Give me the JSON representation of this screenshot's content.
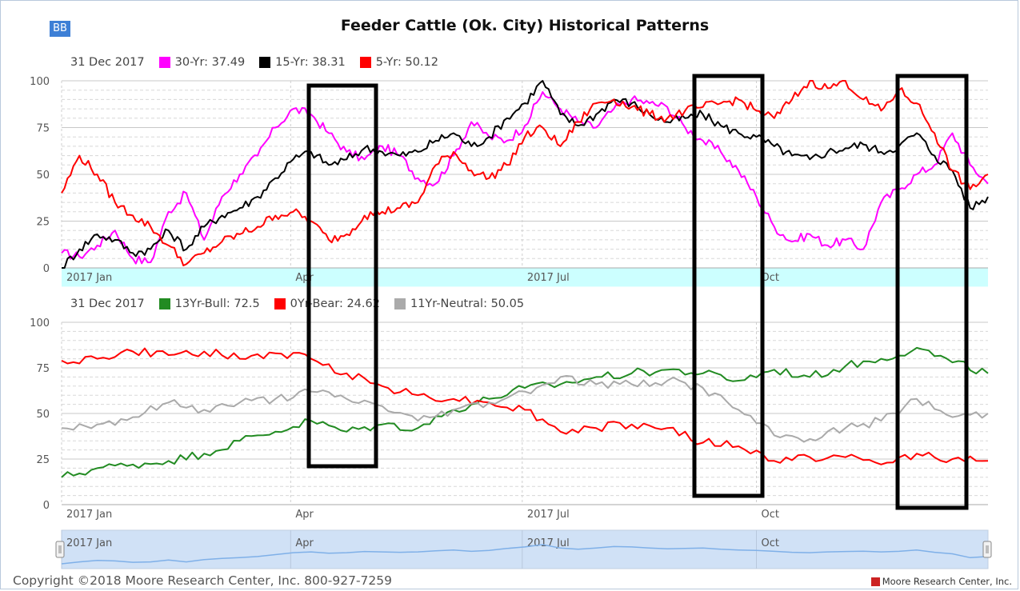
{
  "header": {
    "badge": "BB",
    "title": "Feeder Cattle (Ok. City) Historical Patterns"
  },
  "legend_top": {
    "date": "31 Dec 2017",
    "items": [
      {
        "label": "30-Yr: 37.49",
        "color": "#ff00ff"
      },
      {
        "label": "15-Yr: 38.31",
        "color": "#000000"
      },
      {
        "label": "5-Yr: 50.12",
        "color": "#ff0000"
      }
    ]
  },
  "legend_bottom": {
    "date": "31 Dec 2017",
    "items": [
      {
        "label": "13Yr-Bull: 72.5",
        "color": "#228b22"
      },
      {
        "label": "0Yr-Bear: 24.62",
        "color": "#ff0000"
      },
      {
        "label": "11Yr-Neutral: 50.05",
        "color": "#aaaaaa"
      }
    ]
  },
  "footer": {
    "copyright": "Copyright ©2018 Moore Research Center, Inc. 800-927-7259",
    "brand": "Moore Research Center, Inc."
  },
  "navigator": {
    "labels": [
      "2017 Jan",
      "Apr",
      "2017 Jul",
      "Oct"
    ]
  },
  "chart_data": [
    {
      "type": "line",
      "x_type": "date",
      "x_range": [
        "2017-01-01",
        "2017-12-31"
      ],
      "x_tick_labels": [
        "2017 Jan",
        "Apr",
        "2017 Jul",
        "Oct"
      ],
      "x_ticks": [
        "2017-01-01",
        "2017-04-01",
        "2017-07-01",
        "2017-10-01"
      ],
      "ylim": [
        0,
        100
      ],
      "y_ticks": [
        0,
        25,
        50,
        75,
        100
      ],
      "grid": true,
      "highlight_band": {
        "from": 0,
        "to": -10,
        "color": "#ccffff"
      },
      "series": [
        {
          "name": "30-Yr",
          "color": "#ff00ff",
          "x": [
            "2017-01-01",
            "2017-01-08",
            "2017-01-15",
            "2017-01-22",
            "2017-01-29",
            "2017-02-05",
            "2017-02-12",
            "2017-02-19",
            "2017-02-26",
            "2017-03-05",
            "2017-03-12",
            "2017-03-19",
            "2017-03-26",
            "2017-04-02",
            "2017-04-09",
            "2017-04-16",
            "2017-04-23",
            "2017-04-30",
            "2017-05-07",
            "2017-05-14",
            "2017-05-21",
            "2017-05-28",
            "2017-06-04",
            "2017-06-11",
            "2017-06-18",
            "2017-06-25",
            "2017-07-02",
            "2017-07-09",
            "2017-07-16",
            "2017-07-23",
            "2017-07-30",
            "2017-08-06",
            "2017-08-13",
            "2017-08-20",
            "2017-08-27",
            "2017-09-03",
            "2017-09-10",
            "2017-09-17",
            "2017-09-24",
            "2017-10-01",
            "2017-10-08",
            "2017-10-15",
            "2017-10-22",
            "2017-10-29",
            "2017-11-05",
            "2017-11-12",
            "2017-11-19",
            "2017-11-26",
            "2017-12-03",
            "2017-12-10",
            "2017-12-17",
            "2017-12-24",
            "2017-12-31"
          ],
          "y": [
            8,
            6,
            12,
            20,
            5,
            3,
            30,
            40,
            15,
            38,
            50,
            60,
            75,
            85,
            82,
            72,
            62,
            58,
            65,
            60,
            48,
            45,
            60,
            78,
            70,
            68,
            76,
            94,
            85,
            78,
            75,
            85,
            90,
            88,
            86,
            75,
            68,
            62,
            52,
            38,
            22,
            14,
            18,
            12,
            15,
            10,
            35,
            42,
            50,
            55,
            72,
            55,
            45
          ]
        },
        {
          "name": "15-Yr",
          "color": "#000000",
          "x": [
            "2017-01-01",
            "2017-01-08",
            "2017-01-15",
            "2017-01-22",
            "2017-01-29",
            "2017-02-05",
            "2017-02-12",
            "2017-02-19",
            "2017-02-26",
            "2017-03-05",
            "2017-03-12",
            "2017-03-19",
            "2017-03-26",
            "2017-04-02",
            "2017-04-09",
            "2017-04-16",
            "2017-04-23",
            "2017-04-30",
            "2017-05-07",
            "2017-05-14",
            "2017-05-21",
            "2017-05-28",
            "2017-06-04",
            "2017-06-11",
            "2017-06-18",
            "2017-06-25",
            "2017-07-02",
            "2017-07-09",
            "2017-07-16",
            "2017-07-23",
            "2017-07-30",
            "2017-08-06",
            "2017-08-13",
            "2017-08-20",
            "2017-08-27",
            "2017-09-03",
            "2017-09-10",
            "2017-09-17",
            "2017-09-24",
            "2017-10-01",
            "2017-10-08",
            "2017-10-15",
            "2017-10-22",
            "2017-10-29",
            "2017-11-05",
            "2017-11-12",
            "2017-11-19",
            "2017-11-26",
            "2017-12-03",
            "2017-12-10",
            "2017-12-17",
            "2017-12-24",
            "2017-12-31"
          ],
          "y": [
            0,
            10,
            18,
            15,
            8,
            10,
            20,
            10,
            22,
            28,
            32,
            38,
            48,
            58,
            62,
            55,
            58,
            64,
            62,
            60,
            62,
            68,
            72,
            65,
            70,
            80,
            88,
            100,
            82,
            76,
            82,
            90,
            88,
            82,
            78,
            80,
            82,
            76,
            72,
            70,
            65,
            60,
            58,
            62,
            64,
            66,
            62,
            65,
            72,
            60,
            52,
            32,
            38
          ]
        },
        {
          "name": "5-Yr",
          "color": "#ff0000",
          "x": [
            "2017-01-01",
            "2017-01-08",
            "2017-01-15",
            "2017-01-22",
            "2017-01-29",
            "2017-02-05",
            "2017-02-12",
            "2017-02-19",
            "2017-02-26",
            "2017-03-05",
            "2017-03-12",
            "2017-03-19",
            "2017-03-26",
            "2017-04-02",
            "2017-04-09",
            "2017-04-16",
            "2017-04-23",
            "2017-04-30",
            "2017-05-07",
            "2017-05-14",
            "2017-05-21",
            "2017-05-28",
            "2017-06-04",
            "2017-06-11",
            "2017-06-18",
            "2017-06-25",
            "2017-07-02",
            "2017-07-09",
            "2017-07-16",
            "2017-07-23",
            "2017-07-30",
            "2017-08-06",
            "2017-08-13",
            "2017-08-20",
            "2017-08-27",
            "2017-09-03",
            "2017-09-10",
            "2017-09-17",
            "2017-09-24",
            "2017-10-01",
            "2017-10-08",
            "2017-10-15",
            "2017-10-22",
            "2017-10-29",
            "2017-11-05",
            "2017-11-12",
            "2017-11-19",
            "2017-11-26",
            "2017-12-03",
            "2017-12-10",
            "2017-12-17",
            "2017-12-24",
            "2017-12-31"
          ],
          "y": [
            40,
            60,
            50,
            35,
            28,
            22,
            12,
            2,
            8,
            14,
            18,
            22,
            28,
            30,
            25,
            15,
            18,
            28,
            30,
            32,
            35,
            55,
            62,
            52,
            48,
            55,
            70,
            75,
            65,
            78,
            88,
            90,
            86,
            82,
            80,
            84,
            86,
            88,
            90,
            84,
            80,
            90,
            100,
            96,
            100,
            90,
            84,
            95,
            88,
            72,
            52,
            42,
            50
          ]
        }
      ]
    },
    {
      "type": "line",
      "x_type": "date",
      "x_range": [
        "2017-01-01",
        "2017-12-31"
      ],
      "x_tick_labels": [
        "2017 Jan",
        "Apr",
        "2017 Jul",
        "Oct"
      ],
      "x_ticks": [
        "2017-01-01",
        "2017-04-01",
        "2017-07-01",
        "2017-10-01"
      ],
      "ylim": [
        0,
        100
      ],
      "y_ticks": [
        0,
        25,
        50,
        75,
        100
      ],
      "grid": true,
      "series": [
        {
          "name": "13Yr-Bull",
          "color": "#228b22",
          "x": [
            "2017-01-01",
            "2017-01-15",
            "2017-01-29",
            "2017-02-12",
            "2017-02-26",
            "2017-03-12",
            "2017-03-26",
            "2017-04-09",
            "2017-04-23",
            "2017-05-07",
            "2017-05-21",
            "2017-06-04",
            "2017-06-18",
            "2017-07-02",
            "2017-07-16",
            "2017-07-30",
            "2017-08-13",
            "2017-08-27",
            "2017-09-10",
            "2017-09-24",
            "2017-10-08",
            "2017-10-22",
            "2017-11-05",
            "2017-11-19",
            "2017-12-03",
            "2017-12-17",
            "2017-12-31"
          ],
          "y": [
            15,
            20,
            22,
            24,
            28,
            35,
            40,
            46,
            40,
            44,
            42,
            52,
            58,
            64,
            66,
            70,
            72,
            74,
            72,
            68,
            74,
            70,
            76,
            80,
            86,
            78,
            72
          ]
        },
        {
          "name": "0Yr-Bear",
          "color": "#ff0000",
          "x": [
            "2017-01-01",
            "2017-01-15",
            "2017-01-29",
            "2017-02-12",
            "2017-02-26",
            "2017-03-12",
            "2017-03-26",
            "2017-04-09",
            "2017-04-23",
            "2017-05-07",
            "2017-05-21",
            "2017-06-04",
            "2017-06-18",
            "2017-07-02",
            "2017-07-16",
            "2017-07-30",
            "2017-08-13",
            "2017-08-27",
            "2017-09-10",
            "2017-09-24",
            "2017-10-08",
            "2017-10-22",
            "2017-11-05",
            "2017-11-19",
            "2017-12-03",
            "2017-12-17",
            "2017-12-31"
          ],
          "y": [
            79,
            80,
            84,
            82,
            84,
            80,
            83,
            80,
            72,
            65,
            60,
            58,
            56,
            52,
            40,
            42,
            44,
            42,
            34,
            32,
            24,
            26,
            26,
            22,
            28,
            25,
            24
          ]
        },
        {
          "name": "11Yr-Neutral",
          "color": "#aaaaaa",
          "x": [
            "2017-01-01",
            "2017-01-15",
            "2017-01-29",
            "2017-02-12",
            "2017-02-26",
            "2017-03-12",
            "2017-03-26",
            "2017-04-09",
            "2017-04-23",
            "2017-05-07",
            "2017-05-21",
            "2017-06-04",
            "2017-06-18",
            "2017-07-02",
            "2017-07-16",
            "2017-07-30",
            "2017-08-13",
            "2017-08-27",
            "2017-09-10",
            "2017-09-24",
            "2017-10-08",
            "2017-10-22",
            "2017-11-05",
            "2017-11-19",
            "2017-12-03",
            "2017-12-17",
            "2017-12-31"
          ],
          "y": [
            42,
            44,
            48,
            56,
            52,
            56,
            58,
            62,
            58,
            54,
            46,
            52,
            56,
            62,
            70,
            66,
            66,
            68,
            64,
            52,
            38,
            36,
            42,
            46,
            58,
            48,
            50
          ]
        }
      ]
    }
  ]
}
